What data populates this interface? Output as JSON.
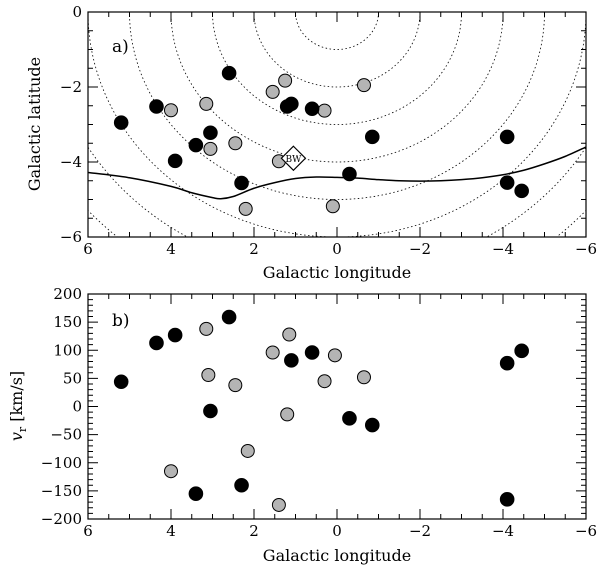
{
  "chart_data": [
    {
      "type": "scatter",
      "panel_label": "a)",
      "xlabel": "Galactic longitude",
      "ylabel": "Galactic latitude",
      "xlim": [
        6,
        -6
      ],
      "ylim": [
        -6,
        0
      ],
      "x_ticks": [
        6,
        4,
        2,
        0,
        -2,
        -4,
        -6
      ],
      "x_tick_labels": [
        "6",
        "4",
        "2",
        "0",
        "−2",
        "−4",
        "−6"
      ],
      "y_ticks": [
        0,
        -2,
        -4,
        -6
      ],
      "y_tick_labels": [
        "0",
        "−2",
        "−4",
        "−6"
      ],
      "circles": {
        "center": [
          0,
          0
        ],
        "radii": [
          1,
          2,
          3,
          4,
          5,
          6,
          7,
          8
        ]
      },
      "boundary_curve": [
        [
          6.0,
          -4.28
        ],
        [
          5.0,
          -4.42
        ],
        [
          4.0,
          -4.65
        ],
        [
          3.5,
          -4.82
        ],
        [
          3.0,
          -4.95
        ],
        [
          2.8,
          -4.98
        ],
        [
          2.5,
          -4.92
        ],
        [
          2.0,
          -4.7
        ],
        [
          1.5,
          -4.55
        ],
        [
          1.0,
          -4.44
        ],
        [
          0.5,
          -4.4
        ],
        [
          0.0,
          -4.41
        ],
        [
          -0.5,
          -4.43
        ],
        [
          -1.0,
          -4.47
        ],
        [
          -1.5,
          -4.5
        ],
        [
          -2.0,
          -4.51
        ],
        [
          -2.5,
          -4.5
        ],
        [
          -3.0,
          -4.47
        ],
        [
          -3.5,
          -4.42
        ],
        [
          -4.0,
          -4.34
        ],
        [
          -4.5,
          -4.22
        ],
        [
          -5.0,
          -4.05
        ],
        [
          -5.5,
          -3.85
        ],
        [
          -6.0,
          -3.6
        ]
      ],
      "marker": {
        "label": "BW",
        "x": 1.05,
        "y": -3.9
      },
      "series": [
        {
          "name": "filled",
          "color": "#000000",
          "points": [
            [
              5.2,
              -2.95
            ],
            [
              4.35,
              -2.52
            ],
            [
              3.9,
              -3.97
            ],
            [
              3.4,
              -3.55
            ],
            [
              3.05,
              -3.22
            ],
            [
              2.6,
              -1.63
            ],
            [
              2.3,
              -4.56
            ],
            [
              1.1,
              -2.45
            ],
            [
              1.2,
              -2.52
            ],
            [
              0.6,
              -2.58
            ],
            [
              -0.3,
              -4.32
            ],
            [
              -0.85,
              -3.33
            ],
            [
              -4.1,
              -3.33
            ],
            [
              -4.1,
              -4.55
            ],
            [
              -4.45,
              -4.77
            ]
          ]
        },
        {
          "name": "open",
          "color": "#b4b4b4",
          "points": [
            [
              4.0,
              -2.62
            ],
            [
              3.15,
              -2.45
            ],
            [
              3.05,
              -3.65
            ],
            [
              2.45,
              -3.5
            ],
            [
              2.2,
              -5.25
            ],
            [
              1.55,
              -2.13
            ],
            [
              1.4,
              -3.98
            ],
            [
              1.25,
              -1.83
            ],
            [
              1.2,
              -2.52
            ],
            [
              0.3,
              -2.63
            ],
            [
              0.1,
              -5.18
            ],
            [
              -0.65,
              -1.95
            ]
          ]
        }
      ]
    },
    {
      "type": "scatter",
      "panel_label": "b)",
      "xlabel": "Galactic longitude",
      "ylabel": "v_r [km/s]",
      "ylabel_main": "v",
      "ylabel_sub": "r",
      "ylabel_unit": " [km/s]",
      "xlim": [
        6,
        -6
      ],
      "ylim": [
        -200,
        200
      ],
      "x_ticks": [
        6,
        4,
        2,
        0,
        -2,
        -4,
        -6
      ],
      "x_tick_labels": [
        "6",
        "4",
        "2",
        "0",
        "−2",
        "−4",
        "−6"
      ],
      "y_ticks": [
        200,
        150,
        100,
        50,
        0,
        -50,
        -100,
        -150,
        -200
      ],
      "y_tick_labels": [
        "200",
        "150",
        "100",
        "50",
        "0",
        "−50",
        "−100",
        "−150",
        "−200"
      ],
      "series": [
        {
          "name": "filled",
          "color": "#000000",
          "points": [
            [
              5.2,
              44
            ],
            [
              4.35,
              113
            ],
            [
              3.9,
              127
            ],
            [
              3.4,
              -155
            ],
            [
              3.05,
              -8
            ],
            [
              2.6,
              159
            ],
            [
              2.3,
              -140
            ],
            [
              1.1,
              82
            ],
            [
              0.6,
              96
            ],
            [
              -0.3,
              -21
            ],
            [
              -0.85,
              -33
            ],
            [
              -4.1,
              77
            ],
            [
              -4.1,
              -165
            ],
            [
              -4.45,
              99
            ]
          ]
        },
        {
          "name": "open",
          "color": "#b4b4b4",
          "points": [
            [
              4.0,
              -115
            ],
            [
              3.15,
              138
            ],
            [
              3.1,
              56
            ],
            [
              2.45,
              38
            ],
            [
              2.15,
              -79
            ],
            [
              1.55,
              96
            ],
            [
              1.4,
              -175
            ],
            [
              1.2,
              -14
            ],
            [
              1.15,
              128
            ],
            [
              0.3,
              45
            ],
            [
              0.05,
              91
            ],
            [
              -0.65,
              52
            ]
          ]
        }
      ]
    }
  ]
}
